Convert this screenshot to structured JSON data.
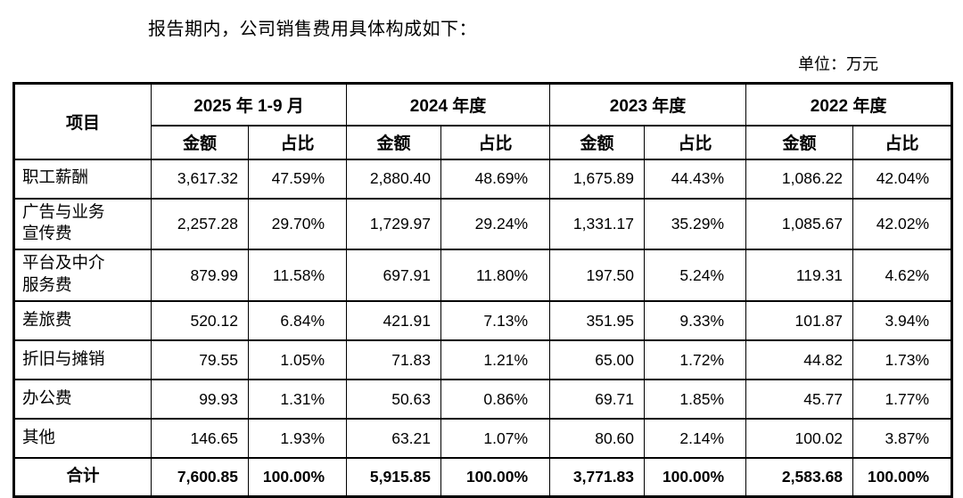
{
  "page": {
    "title": "报告期内，公司销售费用具体构成如下：",
    "unit_label": "单位：万元"
  },
  "table": {
    "item_header": "项目",
    "col_amount": "金额",
    "col_ratio": "占比",
    "periods": [
      "2025 年 1-9 月",
      "2024 年度",
      "2023 年度",
      "2022 年度"
    ],
    "rows": [
      {
        "label": "职工薪酬",
        "total": false,
        "values": [
          "3,617.32",
          "47.59%",
          "2,880.40",
          "48.69%",
          "1,675.89",
          "44.43%",
          "1,086.22",
          "42.04%"
        ]
      },
      {
        "label": "广告与业务\n宣传费",
        "total": false,
        "values": [
          "2,257.28",
          "29.70%",
          "1,729.97",
          "29.24%",
          "1,331.17",
          "35.29%",
          "1,085.67",
          "42.02%"
        ]
      },
      {
        "label": "平台及中介\n服务费",
        "total": false,
        "values": [
          "879.99",
          "11.58%",
          "697.91",
          "11.80%",
          "197.50",
          "5.24%",
          "119.31",
          "4.62%"
        ]
      },
      {
        "label": "差旅费",
        "total": false,
        "values": [
          "520.12",
          "6.84%",
          "421.91",
          "7.13%",
          "351.95",
          "9.33%",
          "101.87",
          "3.94%"
        ]
      },
      {
        "label": "折旧与摊销",
        "total": false,
        "values": [
          "79.55",
          "1.05%",
          "71.83",
          "1.21%",
          "65.00",
          "1.72%",
          "44.82",
          "1.73%"
        ]
      },
      {
        "label": "办公费",
        "total": false,
        "values": [
          "99.93",
          "1.31%",
          "50.63",
          "0.86%",
          "69.71",
          "1.85%",
          "45.77",
          "1.77%"
        ]
      },
      {
        "label": "其他",
        "total": false,
        "values": [
          "146.65",
          "1.93%",
          "63.21",
          "1.07%",
          "80.60",
          "2.14%",
          "100.02",
          "3.87%"
        ]
      },
      {
        "label": "合计",
        "total": true,
        "values": [
          "7,600.85",
          "100.00%",
          "5,915.85",
          "100.00%",
          "3,771.83",
          "100.00%",
          "2,583.68",
          "100.00%"
        ]
      }
    ]
  }
}
